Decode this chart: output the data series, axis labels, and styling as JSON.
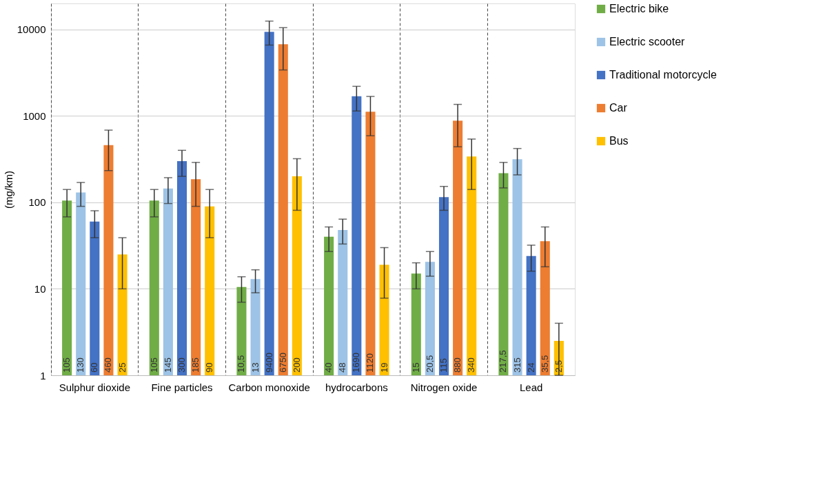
{
  "chart_data": {
    "type": "bar",
    "ylabel": "(mg/km)",
    "log": "y",
    "ylim": [
      1,
      20000
    ],
    "yticks": [
      1,
      10,
      100,
      1000,
      10000
    ],
    "grid": true,
    "legend": "right",
    "categories": [
      "Sulphur dioxide",
      "Fine particles",
      "Carbon monoxide",
      "hydrocarbons",
      "Nitrogen oxide",
      "Lead"
    ],
    "series": [
      {
        "name": "Electric bike",
        "color": "#70ad47",
        "values": [
          105,
          105,
          10.5,
          40,
          15,
          217.5
        ],
        "value_labels": [
          "105",
          "105",
          "10,5",
          "40",
          "15",
          "217,5"
        ],
        "errors": [
          [
            68,
            141
          ],
          [
            68,
            141
          ],
          [
            7,
            13.8
          ],
          [
            27,
            52
          ],
          [
            10,
            20
          ],
          [
            147,
            290
          ]
        ]
      },
      {
        "name": "Electric scooter",
        "color": "#9dc3e6",
        "values": [
          130,
          145,
          13,
          48,
          20.5,
          315
        ],
        "value_labels": [
          "130",
          "145",
          "13",
          "48",
          "20,5",
          "315"
        ],
        "errors": [
          [
            90,
            170
          ],
          [
            97,
            193
          ],
          [
            9,
            16.6
          ],
          [
            33,
            64
          ],
          [
            14,
            27
          ],
          [
            208,
            420
          ]
        ]
      },
      {
        "name": "Traditional motorcycle",
        "color": "#4472c4",
        "values": [
          60,
          300,
          9400,
          1690,
          115,
          24
        ],
        "value_labels": [
          "60",
          "300",
          "9400",
          "1690",
          "115",
          "24"
        ],
        "errors": [
          [
            39,
            80
          ],
          [
            200,
            400
          ],
          [
            6600,
            12500
          ],
          [
            1140,
            2200
          ],
          [
            81,
            153
          ],
          [
            16,
            32
          ]
        ]
      },
      {
        "name": "Car",
        "color": "#ed7d31",
        "values": [
          460,
          185,
          6750,
          1120,
          880,
          35.5
        ],
        "value_labels": [
          "460",
          "185",
          "6750",
          "1120",
          "880",
          "35,5"
        ],
        "errors": [
          [
            233,
            685
          ],
          [
            90,
            290
          ],
          [
            3400,
            10500
          ],
          [
            590,
            1680
          ],
          [
            440,
            1360
          ],
          [
            18,
            52
          ]
        ]
      },
      {
        "name": "Bus",
        "color": "#ffc000",
        "values": [
          25,
          90,
          200,
          19,
          340,
          2.5
        ],
        "value_labels": [
          "25",
          "90",
          "200",
          "19",
          "340",
          "2,5"
        ],
        "errors": [
          [
            10,
            39
          ],
          [
            39,
            141
          ],
          [
            81,
            320
          ],
          [
            7.8,
            30
          ],
          [
            141,
            540
          ],
          [
            1,
            4
          ]
        ]
      }
    ]
  }
}
